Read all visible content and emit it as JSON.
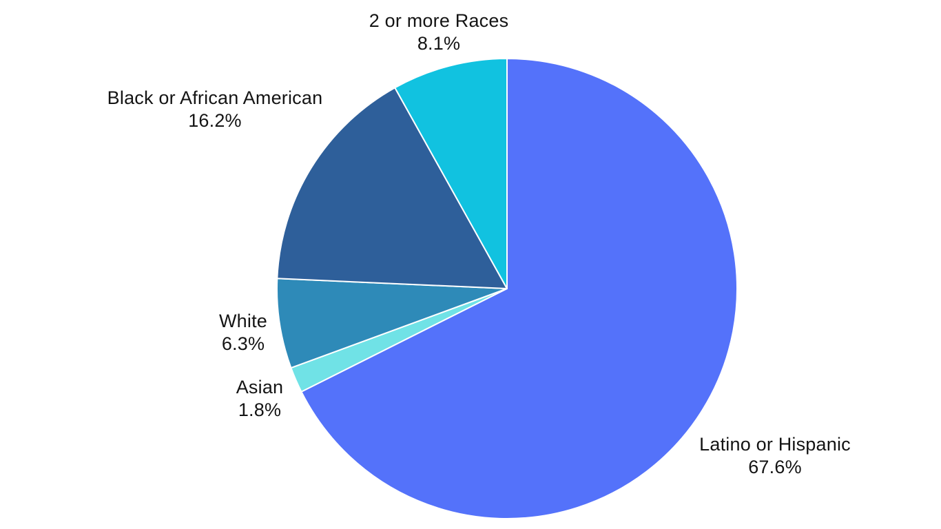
{
  "background_color": "#ffffff",
  "chart_data": {
    "type": "pie",
    "start_angle_deg": 0,
    "direction": "clockwise",
    "legend_position": "none",
    "label_placement": "outside",
    "label_text_color": "#141414",
    "slice_border_color": "#ffffff",
    "categories": [
      "Latino or Hispanic",
      "Asian",
      "White",
      "Black or African American",
      "2 or more Races"
    ],
    "values": [
      67.6,
      1.8,
      6.3,
      16.2,
      8.1
    ],
    "slices": [
      {
        "label": "Latino or Hispanic",
        "value": 67.6,
        "percent_label": "67.6%",
        "color": "#5472FA"
      },
      {
        "label": "Asian",
        "value": 1.8,
        "percent_label": "1.8%",
        "color": "#70E2E6"
      },
      {
        "label": "White",
        "value": 6.3,
        "percent_label": "6.3%",
        "color": "#2E8AB8"
      },
      {
        "label": "Black or African American",
        "value": 16.2,
        "percent_label": "16.2%",
        "color": "#2E5F9A"
      },
      {
        "label": "2 or more Races",
        "value": 8.1,
        "percent_label": "8.1%",
        "color": "#11C2E0"
      }
    ]
  }
}
